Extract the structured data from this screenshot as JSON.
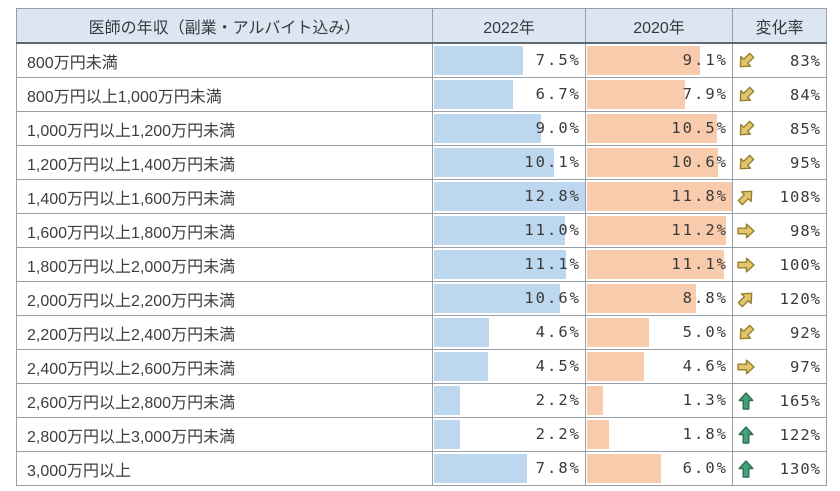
{
  "table": {
    "header": {
      "label": "医師の年収（副業・アルバイト込み）",
      "col_2022": "2022年",
      "col_2020": "2020年",
      "col_rate": "変化率"
    },
    "max_2022": 12.8,
    "max_2020": 11.8,
    "rows": [
      {
        "label": "800万円未満",
        "v2022": 7.5,
        "d2022": "7.5%",
        "v2020": 9.1,
        "d2020": "9.1%",
        "rate": "83%",
        "trend": "down"
      },
      {
        "label": "800万円以上1,000万円未満",
        "v2022": 6.7,
        "d2022": "6.7%",
        "v2020": 7.9,
        "d2020": "7.9%",
        "rate": "84%",
        "trend": "down"
      },
      {
        "label": "1,000万円以上1,200万円未満",
        "v2022": 9.0,
        "d2022": "9.0%",
        "v2020": 10.5,
        "d2020": "10.5%",
        "rate": "85%",
        "trend": "down"
      },
      {
        "label": "1,200万円以上1,400万円未満",
        "v2022": 10.1,
        "d2022": "10.1%",
        "v2020": 10.6,
        "d2020": "10.6%",
        "rate": "95%",
        "trend": "down"
      },
      {
        "label": "1,400万円以上1,600万円未満",
        "v2022": 12.8,
        "d2022": "12.8%",
        "v2020": 11.8,
        "d2020": "11.8%",
        "rate": "108%",
        "trend": "up"
      },
      {
        "label": "1,600万円以上1,800万円未満",
        "v2022": 11.0,
        "d2022": "11.0%",
        "v2020": 11.2,
        "d2020": "11.2%",
        "rate": "98%",
        "trend": "flat"
      },
      {
        "label": "1,800万円以上2,000万円未満",
        "v2022": 11.1,
        "d2022": "11.1%",
        "v2020": 11.1,
        "d2020": "11.1%",
        "rate": "100%",
        "trend": "flat"
      },
      {
        "label": "2,000万円以上2,200万円未満",
        "v2022": 10.6,
        "d2022": "10.6%",
        "v2020": 8.8,
        "d2020": "8.8%",
        "rate": "120%",
        "trend": "up"
      },
      {
        "label": "2,200万円以上2,400万円未満",
        "v2022": 4.6,
        "d2022": "4.6%",
        "v2020": 5.0,
        "d2020": "5.0%",
        "rate": "92%",
        "trend": "down"
      },
      {
        "label": "2,400万円以上2,600万円未満",
        "v2022": 4.5,
        "d2022": "4.5%",
        "v2020": 4.6,
        "d2020": "4.6%",
        "rate": "97%",
        "trend": "flat"
      },
      {
        "label": "2,600万円以上2,800万円未満",
        "v2022": 2.2,
        "d2022": "2.2%",
        "v2020": 1.3,
        "d2020": "1.3%",
        "rate": "165%",
        "trend": "strong-up"
      },
      {
        "label": "2,800万円以上3,000万円未満",
        "v2022": 2.2,
        "d2022": "2.2%",
        "v2020": 1.8,
        "d2020": "1.8%",
        "rate": "122%",
        "trend": "strong-up"
      },
      {
        "label": "3,000万円以上",
        "v2022": 7.8,
        "d2022": "7.8%",
        "v2020": 6.0,
        "d2020": "6.0%",
        "rate": "130%",
        "trend": "strong-up"
      }
    ],
    "colors": {
      "bar_2022": "#bdd7ee",
      "bar_2020": "#f8cbad",
      "header_bg": "#dce6f1",
      "arrow_gold_fill": "#e2c56c",
      "arrow_gold_outline": "#96802f",
      "arrow_green_fill": "#45a177",
      "arrow_green_outline": "#2d6e52",
      "text": "#3d3d3d"
    }
  },
  "chart_data": {
    "type": "table",
    "title": "医師の年収（副業・アルバイト込み）",
    "columns": [
      "医師の年収（副業・アルバイト込み）",
      "2022年",
      "2020年",
      "変化率"
    ],
    "categories": [
      "800万円未満",
      "800万円以上1,000万円未満",
      "1,000万円以上1,200万円未満",
      "1,200万円以上1,400万円未満",
      "1,400万円以上1,600万円未満",
      "1,600万円以上1,800万円未満",
      "1,800万円以上2,000万円未満",
      "2,000万円以上2,200万円未満",
      "2,200万円以上2,400万円未満",
      "2,400万円以上2,600万円未満",
      "2,600万円以上2,800万円未満",
      "2,800万円以上3,000万円未満",
      "3,000万円以上"
    ],
    "series": [
      {
        "name": "2022年",
        "unit": "%",
        "bar_color": "#bdd7ee",
        "bar_scale_max": 12.8,
        "values": [
          7.5,
          6.7,
          9.0,
          10.1,
          12.8,
          11.0,
          11.1,
          10.6,
          4.6,
          4.5,
          2.2,
          2.2,
          7.8
        ]
      },
      {
        "name": "2020年",
        "unit": "%",
        "bar_color": "#f8cbad",
        "bar_scale_max": 11.8,
        "values": [
          9.1,
          7.9,
          10.5,
          10.6,
          11.8,
          11.2,
          11.1,
          8.8,
          5.0,
          4.6,
          1.3,
          1.8,
          6.0
        ]
      }
    ],
    "change_rate": {
      "name": "変化率",
      "unit": "%",
      "values": [
        83,
        84,
        85,
        95,
        108,
        98,
        100,
        120,
        92,
        97,
        165,
        122,
        130
      ],
      "trends": [
        "down",
        "down",
        "down",
        "down",
        "up",
        "flat",
        "flat",
        "up",
        "down",
        "flat",
        "strong-up",
        "strong-up",
        "strong-up"
      ]
    },
    "layout": {
      "bars_fill_from_left": true,
      "values_right_aligned": true,
      "grid": true
    }
  }
}
